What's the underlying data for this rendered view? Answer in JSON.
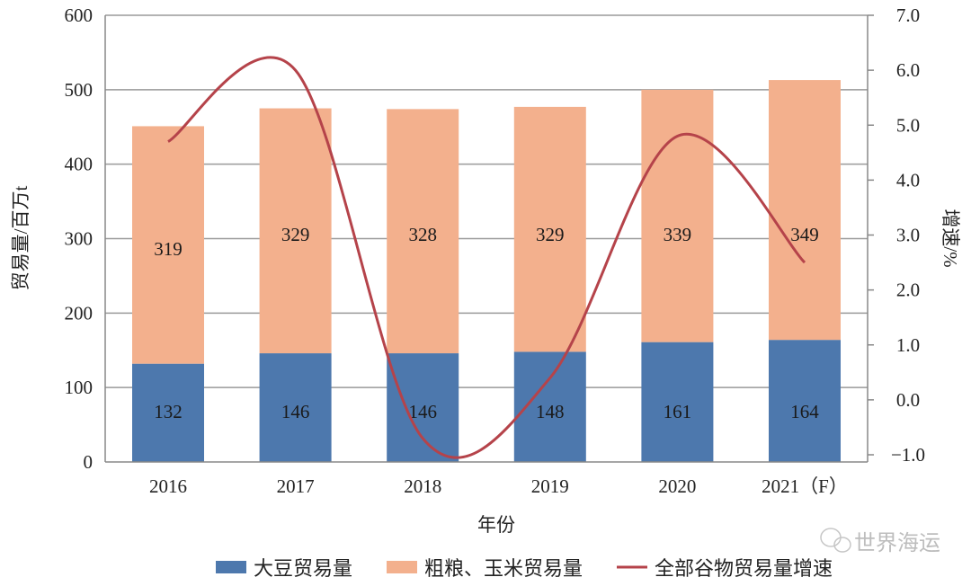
{
  "chart_data": {
    "type": "bar",
    "stacked": true,
    "categories": [
      "2016",
      "2017",
      "2018",
      "2019",
      "2020",
      "2021（F）"
    ],
    "series": [
      {
        "name": "大豆贸易量",
        "type": "bar",
        "axis": "left",
        "color": "#4d78ad",
        "values": [
          132,
          146,
          146,
          148,
          161,
          164
        ]
      },
      {
        "name": "粗粮、玉米贸易量",
        "type": "bar",
        "axis": "left",
        "color": "#f3b08d",
        "values": [
          319,
          329,
          328,
          329,
          339,
          349
        ]
      },
      {
        "name": "全部谷物贸易量增速",
        "type": "line",
        "axis": "right",
        "color": "#b5434a",
        "values": [
          4.7,
          6.0,
          -0.7,
          0.4,
          4.8,
          2.5
        ]
      }
    ],
    "xlabel": "年份",
    "ylabel": "贸易量/百万t",
    "y2label": "增速/%",
    "ylim": [
      0,
      600
    ],
    "yticks": [
      "0",
      "100",
      "200",
      "300",
      "400",
      "500",
      "600"
    ],
    "y2lim": [
      -1.0,
      7.0
    ],
    "y2ticks": [
      "−1.0",
      "0.0",
      "1.0",
      "2.0",
      "3.0",
      "4.0",
      "5.0",
      "6.0",
      "7.0"
    ],
    "grid": true,
    "legend": "bottom"
  },
  "watermark": "世界海运"
}
